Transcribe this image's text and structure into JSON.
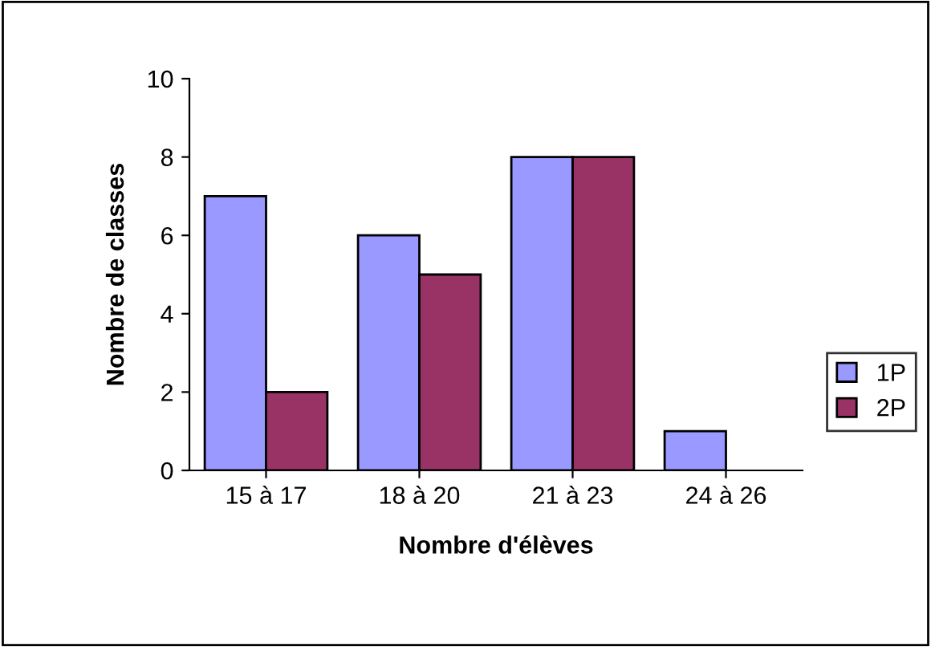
{
  "chart_data": {
    "type": "bar",
    "xlabel": "Nombre d'élèves",
    "ylabel": "Nombre de classes",
    "categories": [
      "15 à 17",
      "18 à 20",
      "21 à 23",
      "24 à 26"
    ],
    "series": [
      {
        "name": "1P",
        "color": "#9999ff",
        "values": [
          7,
          6,
          8,
          1
        ]
      },
      {
        "name": "2P",
        "color": "#993366",
        "values": [
          2,
          5,
          8,
          null
        ]
      }
    ],
    "ylim": [
      0,
      10
    ],
    "yticks": [
      0,
      2,
      4,
      6,
      8,
      10
    ],
    "grid": false,
    "legend": "right"
  }
}
